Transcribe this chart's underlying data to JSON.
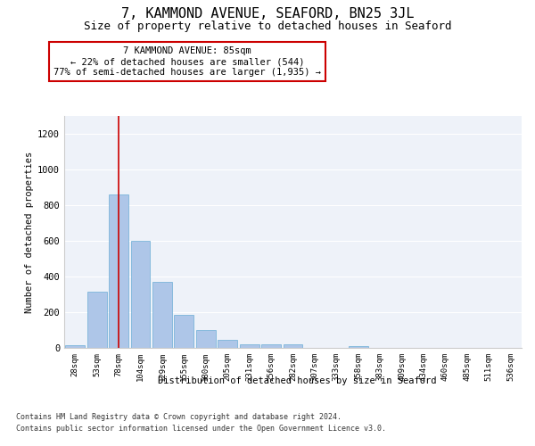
{
  "title": "7, KAMMOND AVENUE, SEAFORD, BN25 3JL",
  "subtitle": "Size of property relative to detached houses in Seaford",
  "xlabel": "Distribution of detached houses by size in Seaford",
  "ylabel": "Number of detached properties",
  "categories": [
    "28sqm",
    "53sqm",
    "78sqm",
    "104sqm",
    "129sqm",
    "155sqm",
    "180sqm",
    "205sqm",
    "231sqm",
    "256sqm",
    "282sqm",
    "307sqm",
    "333sqm",
    "358sqm",
    "383sqm",
    "409sqm",
    "434sqm",
    "460sqm",
    "485sqm",
    "511sqm",
    "536sqm"
  ],
  "values": [
    15,
    315,
    860,
    600,
    370,
    185,
    100,
    47,
    22,
    18,
    18,
    0,
    0,
    12,
    0,
    0,
    0,
    0,
    0,
    0,
    0
  ],
  "bar_color": "#aec6e8",
  "bar_edge_color": "#6baed6",
  "ylim": [
    0,
    1300
  ],
  "yticks": [
    0,
    200,
    400,
    600,
    800,
    1000,
    1200
  ],
  "property_line_x": 2,
  "property_line_color": "#cc0000",
  "annotation_text": "7 KAMMOND AVENUE: 85sqm\n← 22% of detached houses are smaller (544)\n77% of semi-detached houses are larger (1,935) →",
  "annotation_box_color": "#ffffff",
  "annotation_box_edge": "#cc0000",
  "footer_line1": "Contains HM Land Registry data © Crown copyright and database right 2024.",
  "footer_line2": "Contains public sector information licensed under the Open Government Licence v3.0.",
  "background_color": "#eef2f9",
  "title_fontsize": 11,
  "subtitle_fontsize": 9
}
